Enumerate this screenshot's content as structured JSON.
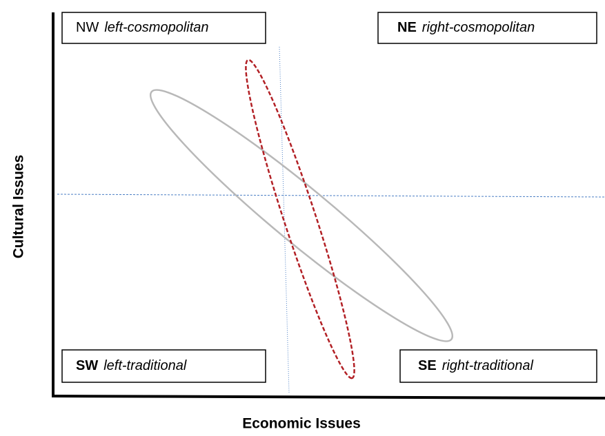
{
  "quadrants": [
    {
      "code": "NW",
      "label": "left-cosmopolitan"
    },
    {
      "code": "NE",
      "label": "right-cosmopolitan"
    },
    {
      "code": "SW",
      "label": "left-traditional"
    },
    {
      "code": "SE",
      "label": "right-traditional"
    }
  ],
  "axes": {
    "x_label": "Economic Issues",
    "y_label": "Cultural Issues"
  }
}
